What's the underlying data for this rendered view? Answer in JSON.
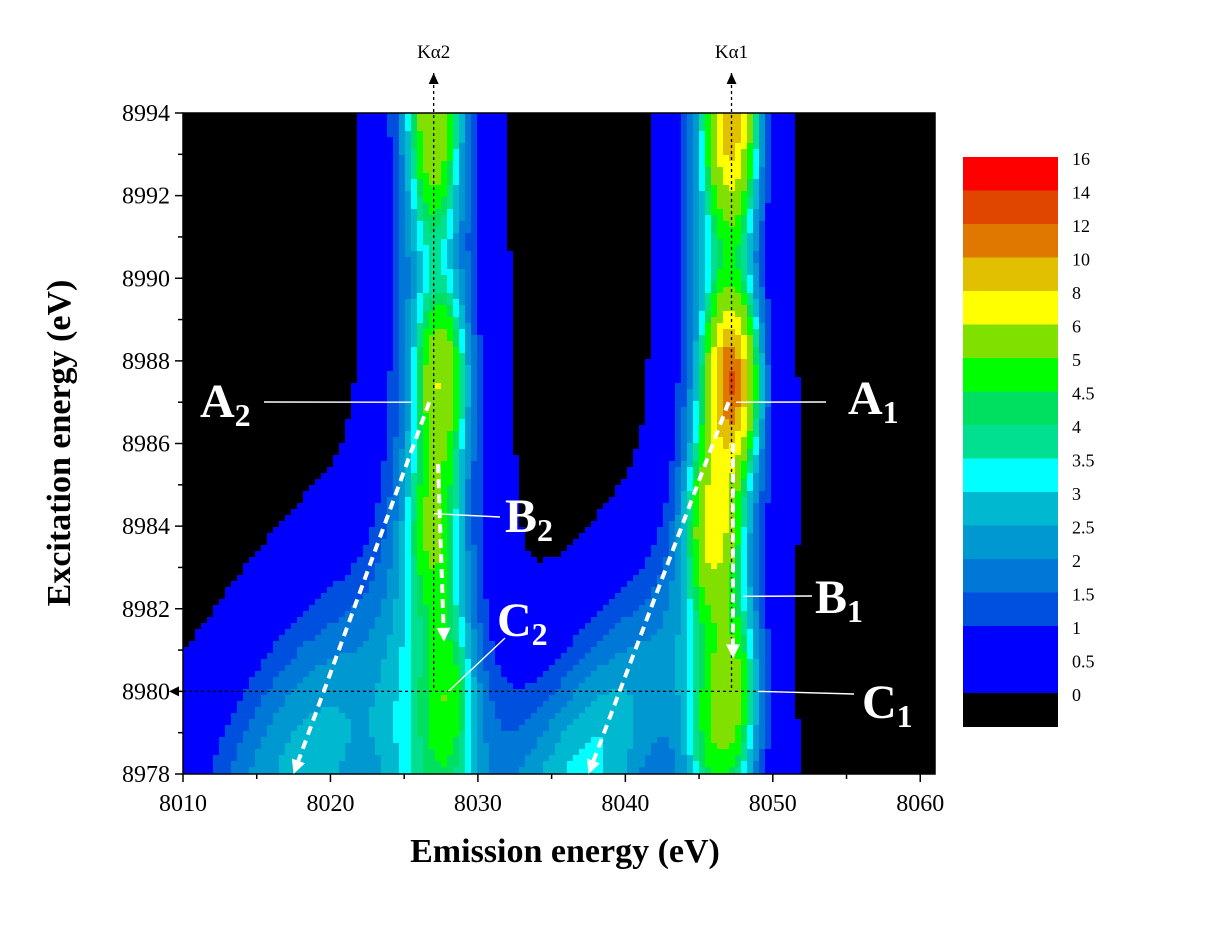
{
  "chart_data": {
    "type": "heatmap",
    "xlabel": "Emission energy (eV)",
    "ylabel": "Excitation energy (eV)",
    "xlim": [
      8010,
      8061
    ],
    "ylim": [
      8978,
      8994
    ],
    "x_ticks": [
      "8010",
      "8020",
      "8030",
      "8040",
      "8050",
      "8060"
    ],
    "y_ticks": [
      "8978",
      "8980",
      "8982",
      "8984",
      "8986",
      "8988",
      "8990",
      "8992",
      "8994"
    ],
    "peak_markers": [
      {
        "label": "Kα2",
        "x": 8027
      },
      {
        "label": "Kα1",
        "x": 8047.2
      }
    ],
    "reference_line": {
      "y": 8980
    },
    "colorbar": {
      "levels": [
        {
          "label": "16",
          "color": "#ff0000"
        },
        {
          "label": "14",
          "color": "#e04600"
        },
        {
          "label": "12",
          "color": "#e07800"
        },
        {
          "label": "10",
          "color": "#e0c000"
        },
        {
          "label": "8",
          "color": "#ffff00"
        },
        {
          "label": "6",
          "color": "#80e000"
        },
        {
          "label": "5",
          "color": "#00ff00"
        },
        {
          "label": "4.5",
          "color": "#00e060"
        },
        {
          "label": "4",
          "color": "#00e090"
        },
        {
          "label": "3.5",
          "color": "#00ffff"
        },
        {
          "label": "3",
          "color": "#00b8d0"
        },
        {
          "label": "2.5",
          "color": "#0098d0"
        },
        {
          "label": "2",
          "color": "#0078d8"
        },
        {
          "label": "1.5",
          "color": "#0050e0"
        },
        {
          "label": "1",
          "color": "#0000ff"
        },
        {
          "label": "0.5",
          "color": "#0000ff"
        },
        {
          "label": "0",
          "color": "#000000"
        }
      ]
    },
    "peaks": [
      {
        "x": 8027,
        "y": 8994,
        "value": 7.5
      },
      {
        "x": 8027.5,
        "y": 8987.5,
        "value": 7.5
      },
      {
        "x": 8027,
        "y": 8984,
        "value": 5.5
      },
      {
        "x": 8028,
        "y": 8980,
        "value": 4.6
      },
      {
        "x": 8047.2,
        "y": 8994,
        "value": 11
      },
      {
        "x": 8047.2,
        "y": 8987.5,
        "value": 13.5
      },
      {
        "x": 8046,
        "y": 8984,
        "value": 8
      },
      {
        "x": 8047.3,
        "y": 8980,
        "value": 6
      },
      {
        "x": 8045.7,
        "y": 8979,
        "value": 4
      }
    ],
    "annotations": [
      {
        "main": "A",
        "sub": "2",
        "point_x": 8025.5,
        "point_y": 8987
      },
      {
        "main": "B",
        "sub": "2",
        "point_x": 8027,
        "point_y": 8984.3
      },
      {
        "main": "C",
        "sub": "2",
        "point_x": 8028,
        "point_y": 8980
      },
      {
        "main": "A",
        "sub": "1",
        "point_x": 8047.5,
        "point_y": 8987
      },
      {
        "main": "B",
        "sub": "1",
        "point_x": 8048,
        "point_y": 8982.3
      },
      {
        "main": "C",
        "sub": "1",
        "point_x": 8049,
        "point_y": 8980
      }
    ],
    "trend_arrows": [
      {
        "from": [
          8026.7,
          8987
        ],
        "to": [
          8017.5,
          8978
        ]
      },
      {
        "from": [
          8027.3,
          8985.5
        ],
        "to": [
          8027.7,
          8981.2
        ]
      },
      {
        "from": [
          8047,
          8987
        ],
        "to": [
          8037.5,
          8978
        ]
      },
      {
        "from": [
          8047.3,
          8986
        ],
        "to": [
          8047.3,
          8980.8
        ]
      }
    ]
  }
}
